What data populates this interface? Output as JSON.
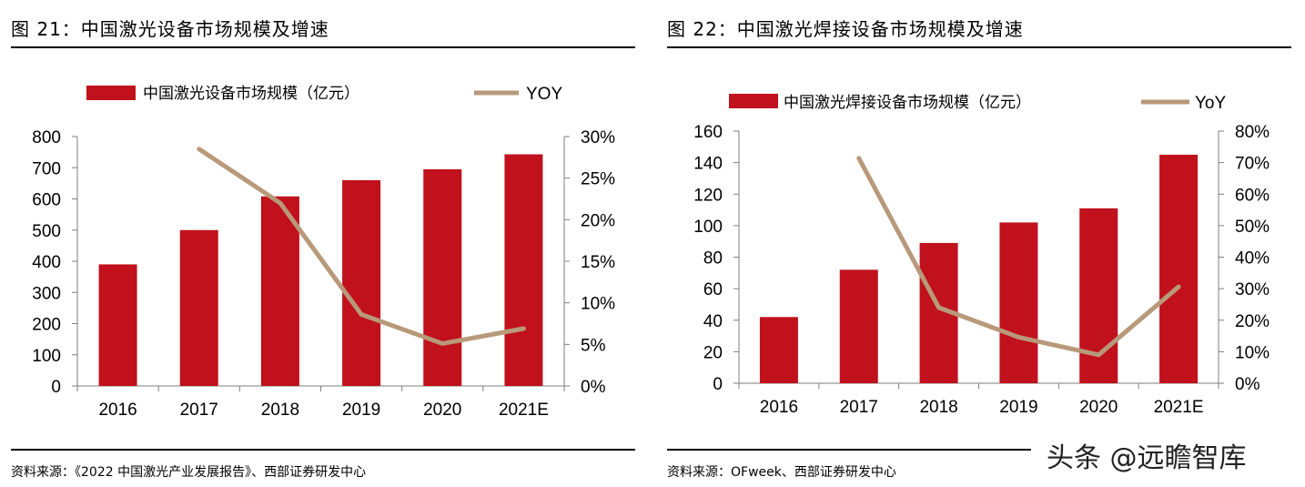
{
  "charts": [
    {
      "figure_title": "图 21：中国激光设备市场规模及增速",
      "source": "资料来源：《2022 中国激光产业发展报告》、西部证券研发中心"
    },
    {
      "figure_title": "图 22：中国激光焊接设备市场规模及增速",
      "source": "资料来源：OFweek、西部证券研发中心"
    }
  ],
  "watermark": "头条 @远瞻智库",
  "colors": {
    "bar": "#C0111C",
    "line": "#B8997A",
    "axis": "#7f7f7f"
  },
  "chart_data": [
    {
      "type": "bar",
      "categories": [
        "2016",
        "2017",
        "2018",
        "2019",
        "2020",
        "2021E"
      ],
      "series": [
        {
          "name": "中国激光设备市场规模（亿元）",
          "type": "bar",
          "axis": "left",
          "values": [
            390,
            500,
            608,
            660,
            695,
            743
          ]
        },
        {
          "name": "YOY",
          "type": "line",
          "axis": "right",
          "values": [
            null,
            28.5,
            22.0,
            8.6,
            5.1,
            6.9
          ]
        }
      ],
      "ylim": [
        0,
        800
      ],
      "yticks": [
        "0",
        "100",
        "200",
        "300",
        "400",
        "500",
        "600",
        "700",
        "800"
      ],
      "y2lim": [
        0,
        30
      ],
      "y2ticks": [
        "0%",
        "5%",
        "10%",
        "15%",
        "20%",
        "25%",
        "30%"
      ],
      "legend_placement": "top",
      "grid": false
    },
    {
      "type": "bar",
      "categories": [
        "2016",
        "2017",
        "2018",
        "2019",
        "2020",
        "2021E"
      ],
      "series": [
        {
          "name": "中国激光焊接设备市场规模（亿元）",
          "type": "bar",
          "axis": "left",
          "values": [
            42,
            72,
            89,
            102,
            111,
            145
          ]
        },
        {
          "name": "YoY",
          "type": "line",
          "axis": "right",
          "values": [
            null,
            71.4,
            24.0,
            14.6,
            9.0,
            30.6
          ]
        }
      ],
      "ylim": [
        0,
        160
      ],
      "yticks": [
        "0",
        "20",
        "40",
        "60",
        "80",
        "100",
        "120",
        "140",
        "160"
      ],
      "y2lim": [
        0,
        80
      ],
      "y2ticks": [
        "0%",
        "10%",
        "20%",
        "30%",
        "40%",
        "50%",
        "60%",
        "70%",
        "80%"
      ],
      "legend_placement": "top",
      "grid": false
    }
  ]
}
